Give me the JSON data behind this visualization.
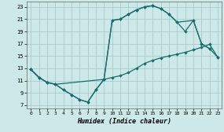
{
  "xlabel": "Humidex (Indice chaleur)",
  "background_color": "#cce8e8",
  "grid_color": "#aacccc",
  "line_color": "#1a6b6b",
  "curve1_x": [
    0,
    1,
    2,
    3,
    4,
    5,
    6,
    7,
    8,
    9,
    10,
    11,
    12,
    13,
    14,
    15,
    16,
    17,
    18,
    19,
    20,
    21,
    22,
    23
  ],
  "curve1_y": [
    12.8,
    11.5,
    10.7,
    10.4,
    9.5,
    8.7,
    7.9,
    7.5,
    9.5,
    11.2,
    11.5,
    11.8,
    12.3,
    13.0,
    13.8,
    14.3,
    14.7,
    15.0,
    15.3,
    15.6,
    16.0,
    16.4,
    16.9,
    14.8
  ],
  "curve2_x": [
    0,
    1,
    2,
    3,
    4,
    5,
    6,
    7,
    8,
    9,
    10,
    11,
    12,
    13,
    14,
    15,
    16,
    17,
    18,
    20,
    21,
    22
  ],
  "curve2_y": [
    12.8,
    11.5,
    10.7,
    10.4,
    9.5,
    8.7,
    7.9,
    7.5,
    9.5,
    11.2,
    20.8,
    21.0,
    21.8,
    22.5,
    23.0,
    23.2,
    22.7,
    21.8,
    20.5,
    20.8,
    17.0,
    16.2
  ],
  "curve3_x": [
    0,
    1,
    2,
    3,
    9,
    10,
    11,
    12,
    13,
    14,
    15,
    16,
    17,
    18,
    19,
    20,
    21,
    22,
    23
  ],
  "curve3_y": [
    12.8,
    11.5,
    10.7,
    10.4,
    11.2,
    20.8,
    21.0,
    21.8,
    22.5,
    23.0,
    23.2,
    22.7,
    21.8,
    20.5,
    19.0,
    20.8,
    17.0,
    16.2,
    14.8
  ],
  "xlim": [
    0,
    23
  ],
  "ylim": [
    6.5,
    23.9
  ],
  "yticks": [
    7,
    9,
    11,
    13,
    15,
    17,
    19,
    21,
    23
  ],
  "xticks": [
    0,
    1,
    2,
    3,
    4,
    5,
    6,
    7,
    8,
    9,
    10,
    11,
    12,
    13,
    14,
    15,
    16,
    17,
    18,
    19,
    20,
    21,
    22,
    23
  ]
}
